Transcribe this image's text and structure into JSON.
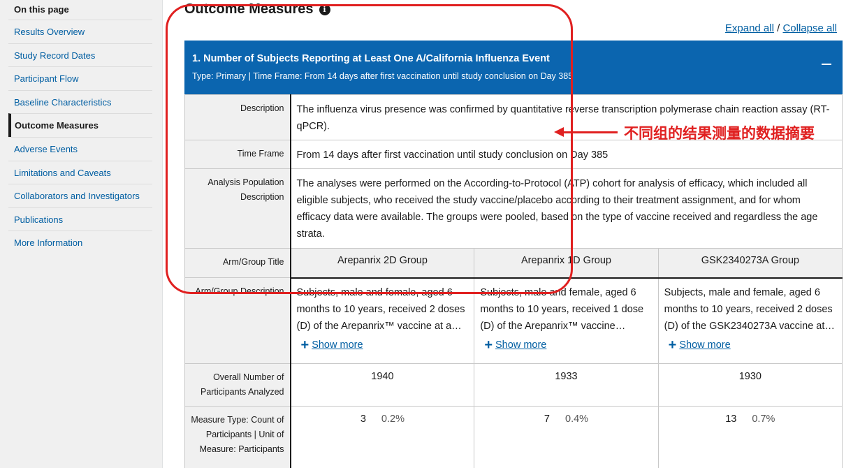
{
  "sidebar": {
    "title": "On this page",
    "items": [
      {
        "label": "Results Overview"
      },
      {
        "label": "Study Record Dates"
      },
      {
        "label": "Participant Flow"
      },
      {
        "label": "Baseline Characteristics"
      },
      {
        "label": "Outcome Measures",
        "active": true
      },
      {
        "label": "Adverse Events"
      },
      {
        "label": "Limitations and Caveats"
      },
      {
        "label": "Collaborators and Investigators"
      },
      {
        "label": "Publications"
      },
      {
        "label": "More Information"
      }
    ]
  },
  "main": {
    "heading": "Outcome Measures",
    "info_icon": "info-icon",
    "expand_all": "Expand all",
    "separator": "/",
    "collapse_all": "Collapse all",
    "outcome": {
      "title": "1. Number of Subjects Reporting at Least One A/California Influenza Event",
      "type_line": "Type: Primary | Time Frame: From 14 days after first vaccination until study conclusion on Day 385",
      "collapse_icon": "minus-icon",
      "rows": {
        "description_label": "Description",
        "description": "The influenza virus presence was confirmed by quantitative reverse transcription polymerase chain reaction assay (RT-qPCR).",
        "time_frame_label": "Time Frame",
        "time_frame": "From 14 days after first vaccination until study conclusion on Day 385",
        "population_label": "Analysis Population Description",
        "population": "The analyses were performed on the According-to-Protocol (ATP) cohort for analysis of efficacy, which included all eligible subjects, who received the study vaccine/placebo according to their treatment assignment, and for whom efficacy data were available. The groups were pooled, based on the type of vaccine received and regardless the age strata.",
        "group_title_label": "Arm/Group Title",
        "group_desc_label": "Arm/Group Description",
        "overall_label": "Overall Number of Participants Analyzed",
        "measure_label": "Measure Type: Count of Participants | Unit of Measure: Participants"
      },
      "show_more": "Show more",
      "groups": [
        {
          "title": "Arepanrix 2D Group",
          "description": "Subjects, male and female, aged 6 months to 10 years, received 2 doses (D) of the Arepanrix™ vaccine at a 2…",
          "overall": "1940",
          "count": "3",
          "pct": "0.2%"
        },
        {
          "title": "Arepanrix 1D Group",
          "description": "Subjects, male and female, aged 6 months to 10 years, received 1 dose (D) of the Arepanrix™ vaccine…",
          "overall": "1933",
          "count": "7",
          "pct": "0.4%"
        },
        {
          "title": "GSK2340273A Group",
          "description": "Subjects, male and female, aged 6 months to 10 years, received 2 doses (D) of the GSK2340273A vaccine at…",
          "overall": "1930",
          "count": "13",
          "pct": "0.7%"
        }
      ]
    }
  },
  "annotation": {
    "text": "不同组的结果测量的数据摘要",
    "color": "#e02020"
  },
  "colors": {
    "link": "#005ea2",
    "panel_header": "#0b65af",
    "sidebar_bg": "#f0f0f0"
  }
}
